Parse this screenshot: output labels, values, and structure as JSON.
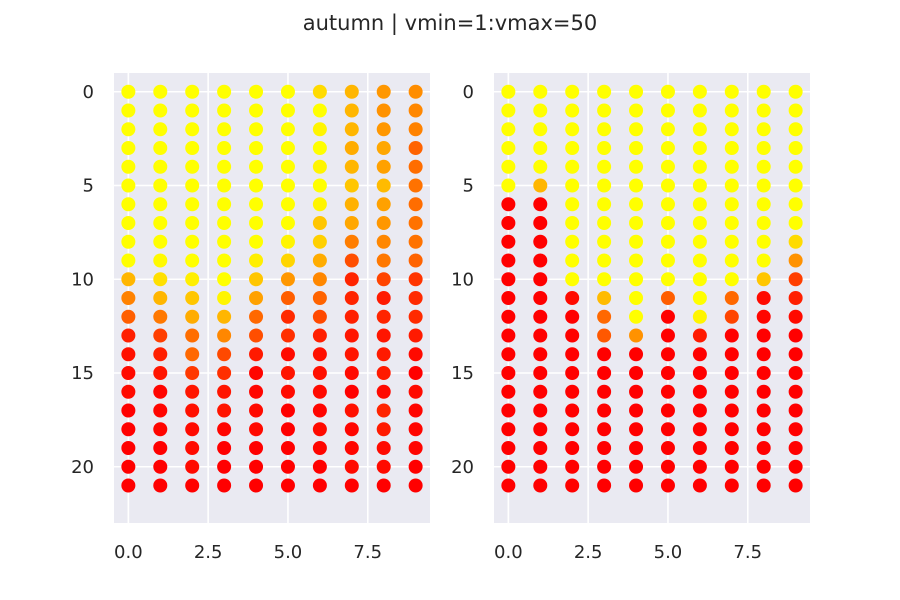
{
  "figure": {
    "suptitle": "autumn | vmin=1:vmax=50",
    "background": "#ffffff",
    "axes_facecolor": "#eaeaf2",
    "grid_color": "#ffffff"
  },
  "chart_data": [
    {
      "type": "scatter",
      "title": "",
      "xlabel": "",
      "ylabel": "",
      "xlim": [
        -0.45,
        9.45
      ],
      "ylim": [
        23.0,
        -1.0
      ],
      "y_inverted": true,
      "xticks": [
        0.0,
        2.5,
        5.0,
        7.5
      ],
      "xtick_labels": [
        "0.0",
        "2.5",
        "5.0",
        "7.5"
      ],
      "yticks": [
        0,
        5,
        10,
        15,
        20
      ],
      "ytick_labels": [
        "0",
        "5",
        "10",
        "15",
        "20"
      ],
      "grid": true,
      "colormap": "autumn",
      "vmin": 1,
      "vmax": 50,
      "columns": [
        0,
        1,
        2,
        3,
        4,
        5,
        6,
        7,
        8,
        9
      ],
      "rows": [
        0,
        1,
        2,
        3,
        4,
        5,
        6,
        7,
        8,
        9,
        10,
        11,
        12,
        13,
        14,
        15,
        16,
        17,
        18,
        19,
        20,
        21
      ],
      "values_by_row": [
        [
          1,
          1,
          1,
          1,
          1,
          1,
          8,
          15,
          21,
          23
        ],
        [
          1,
          1,
          1,
          1,
          1,
          1,
          1,
          15,
          22,
          24
        ],
        [
          1,
          1,
          1,
          1,
          1,
          1,
          3,
          15,
          21,
          25
        ],
        [
          1,
          1,
          1,
          1,
          1,
          1,
          1,
          17,
          18,
          31
        ],
        [
          1,
          1,
          1,
          1,
          1,
          1,
          3,
          15,
          19,
          29
        ],
        [
          1,
          1,
          1,
          1,
          1,
          1,
          1,
          12,
          14,
          28
        ],
        [
          1,
          1,
          1,
          1,
          1,
          1,
          3,
          16,
          19,
          29
        ],
        [
          1,
          1,
          1,
          1,
          1,
          1,
          12,
          18,
          21,
          28
        ],
        [
          1,
          1,
          1,
          1,
          1,
          3,
          10,
          26,
          24,
          28
        ],
        [
          1,
          2,
          1,
          1,
          4,
          9,
          17,
          35,
          27,
          31
        ],
        [
          15,
          7,
          4,
          1,
          12,
          21,
          24,
          43,
          37,
          40
        ],
        [
          25,
          15,
          12,
          3,
          19,
          32,
          31,
          43,
          45,
          42
        ],
        [
          32,
          27,
          17,
          15,
          30,
          42,
          36,
          44,
          43,
          42
        ],
        [
          44,
          38,
          29,
          24,
          35,
          41,
          44,
          46,
          46,
          45
        ],
        [
          47,
          44,
          30,
          36,
          45,
          48,
          47,
          46,
          45,
          48
        ],
        [
          48,
          46,
          39,
          41,
          49,
          46,
          47,
          48,
          45,
          50
        ],
        [
          48,
          49,
          46,
          46,
          49,
          48,
          48,
          50,
          48,
          48
        ],
        [
          50,
          49,
          47,
          46,
          48,
          50,
          49,
          47,
          43,
          49
        ],
        [
          50,
          49,
          48,
          49,
          48,
          50,
          48,
          49,
          45,
          49
        ],
        [
          50,
          50,
          48,
          50,
          50,
          50,
          49,
          49,
          48,
          49
        ],
        [
          50,
          50,
          48,
          50,
          50,
          50,
          50,
          48,
          48,
          50
        ],
        [
          50,
          50,
          50,
          50,
          50,
          50,
          50,
          50,
          50,
          50
        ]
      ]
    },
    {
      "type": "scatter",
      "title": "",
      "xlabel": "",
      "ylabel": "",
      "xlim": [
        -0.45,
        9.45
      ],
      "ylim": [
        23.0,
        -1.0
      ],
      "y_inverted": true,
      "xticks": [
        0.0,
        2.5,
        5.0,
        7.5
      ],
      "xtick_labels": [
        "0.0",
        "2.5",
        "5.0",
        "7.5"
      ],
      "yticks": [
        0,
        5,
        10,
        15,
        20
      ],
      "ytick_labels": [
        "0",
        "5",
        "10",
        "15",
        "20"
      ],
      "grid": true,
      "colormap": "autumn",
      "vmin": 1,
      "vmax": 50,
      "columns": [
        0,
        1,
        2,
        3,
        4,
        5,
        6,
        7,
        8,
        9
      ],
      "rows": [
        0,
        1,
        2,
        3,
        4,
        5,
        6,
        7,
        8,
        9,
        10,
        11,
        12,
        13,
        14,
        15,
        16,
        17,
        18,
        19,
        20,
        21
      ],
      "values_by_row": [
        [
          1,
          1,
          1,
          1,
          1,
          1,
          1,
          1,
          1,
          1
        ],
        [
          1,
          1,
          1,
          1,
          1,
          1,
          1,
          1,
          1,
          1
        ],
        [
          1,
          1,
          1,
          1,
          1,
          1,
          1,
          1,
          1,
          1
        ],
        [
          1,
          1,
          1,
          1,
          1,
          1,
          1,
          1,
          1,
          1
        ],
        [
          1,
          1,
          1,
          1,
          1,
          1,
          1,
          1,
          1,
          1
        ],
        [
          1,
          15,
          1,
          1,
          1,
          1,
          1,
          1,
          1,
          1
        ],
        [
          50,
          50,
          1,
          1,
          1,
          1,
          1,
          1,
          1,
          1
        ],
        [
          50,
          50,
          1,
          1,
          1,
          1,
          1,
          1,
          1,
          1
        ],
        [
          50,
          50,
          1,
          1,
          1,
          1,
          1,
          1,
          1,
          8
        ],
        [
          50,
          50,
          1,
          1,
          1,
          1,
          1,
          1,
          1,
          22
        ],
        [
          50,
          50,
          1,
          1,
          1,
          1,
          1,
          1,
          12,
          38
        ],
        [
          50,
          50,
          48,
          14,
          1,
          32,
          1,
          30,
          48,
          44
        ],
        [
          50,
          50,
          50,
          30,
          1,
          50,
          3,
          37,
          49,
          48
        ],
        [
          50,
          50,
          50,
          33,
          22,
          50,
          45,
          50,
          50,
          50
        ],
        [
          50,
          50,
          50,
          50,
          50,
          50,
          50,
          50,
          50,
          50
        ],
        [
          50,
          50,
          50,
          50,
          50,
          50,
          50,
          50,
          50,
          50
        ],
        [
          50,
          50,
          50,
          50,
          50,
          50,
          50,
          50,
          50,
          50
        ],
        [
          50,
          50,
          50,
          50,
          50,
          50,
          50,
          50,
          50,
          50
        ],
        [
          50,
          50,
          50,
          50,
          50,
          50,
          50,
          50,
          50,
          50
        ],
        [
          50,
          50,
          50,
          50,
          50,
          50,
          50,
          50,
          50,
          50
        ],
        [
          50,
          50,
          50,
          50,
          50,
          50,
          50,
          50,
          50,
          50
        ],
        [
          50,
          50,
          50,
          50,
          50,
          50,
          50,
          50,
          50,
          50
        ]
      ]
    }
  ]
}
